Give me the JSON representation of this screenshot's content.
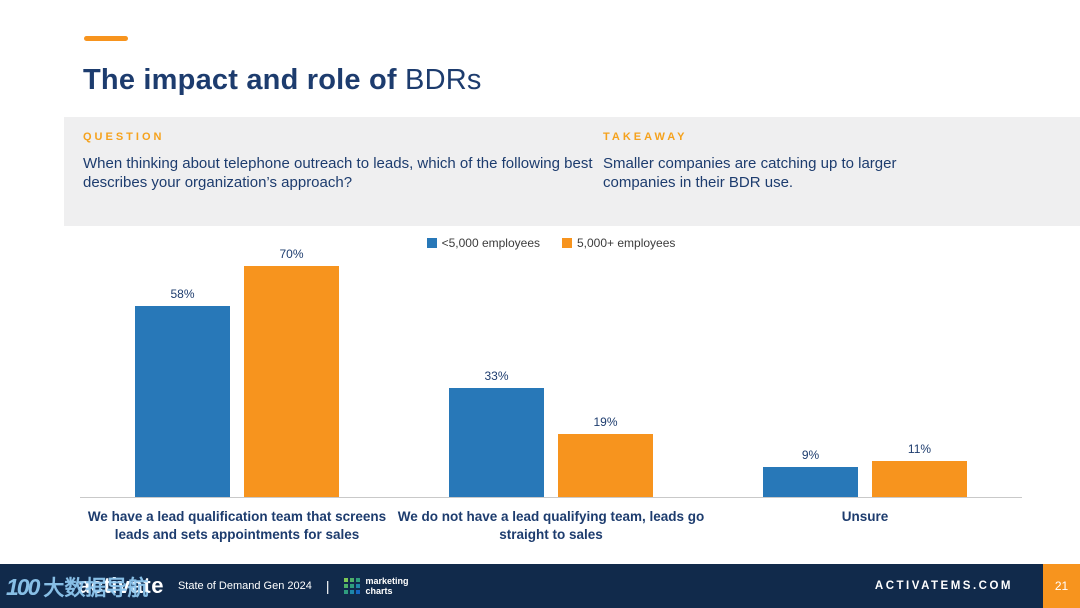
{
  "slide": {
    "title_bold": "The impact and role of",
    "title_regular": " BDRs",
    "question": {
      "label": "QUESTION",
      "text": "When thinking about telephone outreach to leads, which of the following best describes your organization’s approach?"
    },
    "takeaway": {
      "label": "TAKEAWAY",
      "text": "Smaller companies are catching up to larger companies in their BDR use."
    }
  },
  "chart_data": {
    "type": "bar",
    "categories": [
      "We have a lead qualification team that screens leads and sets appointments for sales",
      "We do not have a lead qualifying team, leads go straight to sales",
      "Unsure"
    ],
    "series": [
      {
        "name": "<5,000 employees",
        "color": "#2878B8",
        "values": [
          58,
          33,
          9
        ]
      },
      {
        "name": "5,000+ employees",
        "color": "#F7941E",
        "values": [
          70,
          19,
          11
        ]
      }
    ],
    "value_suffix": "%",
    "ylim": [
      0,
      78
    ],
    "legend_position": "top",
    "grid": false
  },
  "colors": {
    "accent_orange": "#F7941E",
    "navy_text": "#1D3C6E",
    "footer_bg": "#112A4B",
    "band_bg": "#EFEFF0"
  },
  "footer": {
    "logo": "activate",
    "report": "State of Demand Gen 2024",
    "divider": "|",
    "mc_line1": "marketing",
    "mc_line2": "charts",
    "site": "ACTIVATEMS.COM",
    "page": "21"
  },
  "watermark": {
    "icon": "100",
    "text": "大数据导航"
  }
}
